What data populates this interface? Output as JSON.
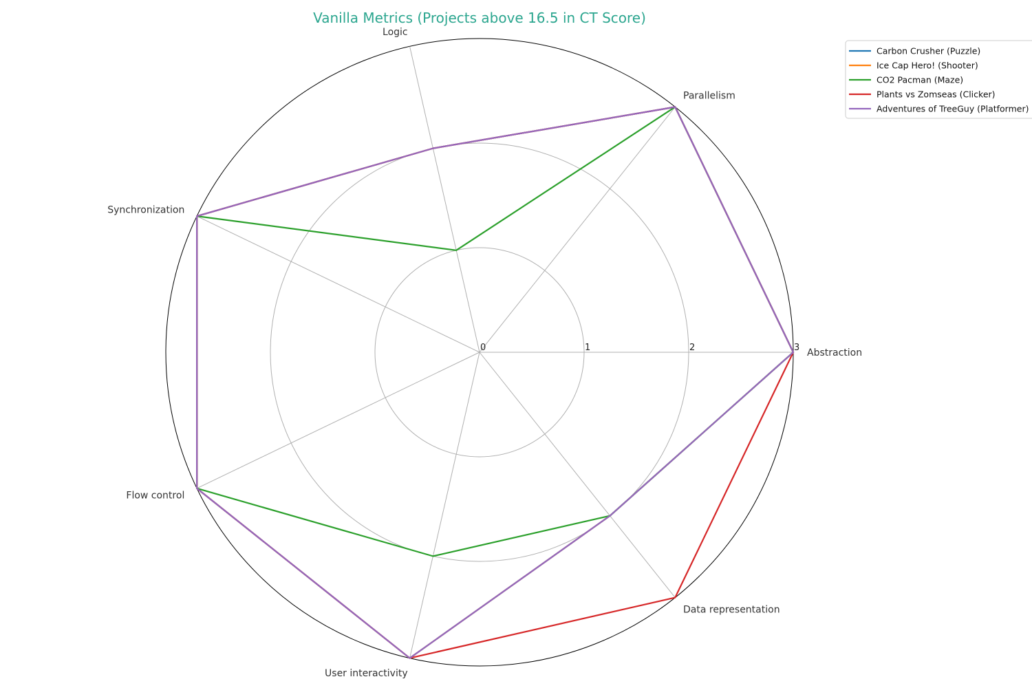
{
  "chart_data": {
    "type": "radar",
    "title": "Vanilla Metrics (Projects above 16.5 in CT Score)",
    "title_color": "#2ca68f",
    "axes": [
      "Abstraction",
      "Parallelism",
      "Logic",
      "Synchronization",
      "Flow control",
      "User interactivity",
      "Data representation"
    ],
    "rlim": [
      0,
      3
    ],
    "rticks": [
      0,
      1,
      2,
      3
    ],
    "rtick_labels": [
      "0",
      "1",
      "2",
      "3"
    ],
    "grid": true,
    "legend_position": "top-right",
    "series": [
      {
        "name": "Carbon Crusher (Puzzle)",
        "color": "#1f77b4",
        "values": [
          3,
          3,
          2,
          3,
          3,
          3,
          2
        ]
      },
      {
        "name": "Ice Cap Hero! (Shooter)",
        "color": "#ff7f0e",
        "values": [
          3,
          3,
          2,
          3,
          3,
          3,
          2
        ]
      },
      {
        "name": "CO2 Pacman (Maze)",
        "color": "#2ca02c",
        "values": [
          3,
          3,
          1,
          3,
          3,
          2,
          2
        ]
      },
      {
        "name": "Plants vs Zomseas (Clicker)",
        "color": "#d62728",
        "values": [
          3,
          3,
          2,
          3,
          3,
          3,
          3
        ]
      },
      {
        "name": "Adventures of TreeGuy (Platformer)",
        "color": "#9467bd",
        "values": [
          3,
          3,
          2,
          3,
          3,
          3,
          2
        ]
      }
    ]
  }
}
